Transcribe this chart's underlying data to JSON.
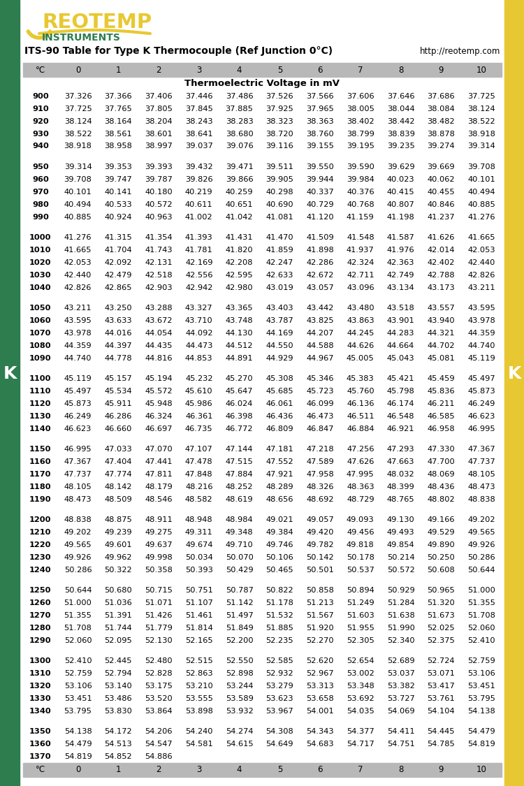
{
  "title_line1": "ITS-90 Table for Type K Thermocouple (Ref Junction 0°C)",
  "title_url": "http://reotemp.com",
  "subtitle": "Thermoelectric Voltage in mV",
  "col_headers": [
    "°C",
    "0",
    "1",
    "2",
    "3",
    "4",
    "5",
    "6",
    "7",
    "8",
    "9",
    "10"
  ],
  "background": "#ffffff",
  "header_bg": "#b8b8b8",
  "side_green": "#2e7d4f",
  "side_yellow": "#e8c832",
  "reotemp_yellow": "#e8c832",
  "reotemp_green": "#2e7d4f",
  "table_data": [
    [
      900,
      37.326,
      37.366,
      37.406,
      37.446,
      37.486,
      37.526,
      37.566,
      37.606,
      37.646,
      37.686,
      37.725
    ],
    [
      910,
      37.725,
      37.765,
      37.805,
      37.845,
      37.885,
      37.925,
      37.965,
      38.005,
      38.044,
      38.084,
      38.124
    ],
    [
      920,
      38.124,
      38.164,
      38.204,
      38.243,
      38.283,
      38.323,
      38.363,
      38.402,
      38.442,
      38.482,
      38.522
    ],
    [
      930,
      38.522,
      38.561,
      38.601,
      38.641,
      38.68,
      38.72,
      38.76,
      38.799,
      38.839,
      38.878,
      38.918
    ],
    [
      940,
      38.918,
      38.958,
      38.997,
      39.037,
      39.076,
      39.116,
      39.155,
      39.195,
      39.235,
      39.274,
      39.314
    ],
    [
      950,
      39.314,
      39.353,
      39.393,
      39.432,
      39.471,
      39.511,
      39.55,
      39.59,
      39.629,
      39.669,
      39.708
    ],
    [
      960,
      39.708,
      39.747,
      39.787,
      39.826,
      39.866,
      39.905,
      39.944,
      39.984,
      40.023,
      40.062,
      40.101
    ],
    [
      970,
      40.101,
      40.141,
      40.18,
      40.219,
      40.259,
      40.298,
      40.337,
      40.376,
      40.415,
      40.455,
      40.494
    ],
    [
      980,
      40.494,
      40.533,
      40.572,
      40.611,
      40.651,
      40.69,
      40.729,
      40.768,
      40.807,
      40.846,
      40.885
    ],
    [
      990,
      40.885,
      40.924,
      40.963,
      41.002,
      41.042,
      41.081,
      41.12,
      41.159,
      41.198,
      41.237,
      41.276
    ],
    [
      1000,
      41.276,
      41.315,
      41.354,
      41.393,
      41.431,
      41.47,
      41.509,
      41.548,
      41.587,
      41.626,
      41.665
    ],
    [
      1010,
      41.665,
      41.704,
      41.743,
      41.781,
      41.82,
      41.859,
      41.898,
      41.937,
      41.976,
      42.014,
      42.053
    ],
    [
      1020,
      42.053,
      42.092,
      42.131,
      42.169,
      42.208,
      42.247,
      42.286,
      42.324,
      42.363,
      42.402,
      42.44
    ],
    [
      1030,
      42.44,
      42.479,
      42.518,
      42.556,
      42.595,
      42.633,
      42.672,
      42.711,
      42.749,
      42.788,
      42.826
    ],
    [
      1040,
      42.826,
      42.865,
      42.903,
      42.942,
      42.98,
      43.019,
      43.057,
      43.096,
      43.134,
      43.173,
      43.211
    ],
    [
      1050,
      43.211,
      43.25,
      43.288,
      43.327,
      43.365,
      43.403,
      43.442,
      43.48,
      43.518,
      43.557,
      43.595
    ],
    [
      1060,
      43.595,
      43.633,
      43.672,
      43.71,
      43.748,
      43.787,
      43.825,
      43.863,
      43.901,
      43.94,
      43.978
    ],
    [
      1070,
      43.978,
      44.016,
      44.054,
      44.092,
      44.13,
      44.169,
      44.207,
      44.245,
      44.283,
      44.321,
      44.359
    ],
    [
      1080,
      44.359,
      44.397,
      44.435,
      44.473,
      44.512,
      44.55,
      44.588,
      44.626,
      44.664,
      44.702,
      44.74
    ],
    [
      1090,
      44.74,
      44.778,
      44.816,
      44.853,
      44.891,
      44.929,
      44.967,
      45.005,
      45.043,
      45.081,
      45.119
    ],
    [
      1100,
      45.119,
      45.157,
      45.194,
      45.232,
      45.27,
      45.308,
      45.346,
      45.383,
      45.421,
      45.459,
      45.497
    ],
    [
      1110,
      45.497,
      45.534,
      45.572,
      45.61,
      45.647,
      45.685,
      45.723,
      45.76,
      45.798,
      45.836,
      45.873
    ],
    [
      1120,
      45.873,
      45.911,
      45.948,
      45.986,
      46.024,
      46.061,
      46.099,
      46.136,
      46.174,
      46.211,
      46.249
    ],
    [
      1130,
      46.249,
      46.286,
      46.324,
      46.361,
      46.398,
      46.436,
      46.473,
      46.511,
      46.548,
      46.585,
      46.623
    ],
    [
      1140,
      46.623,
      46.66,
      46.697,
      46.735,
      46.772,
      46.809,
      46.847,
      46.884,
      46.921,
      46.958,
      46.995
    ],
    [
      1150,
      46.995,
      47.033,
      47.07,
      47.107,
      47.144,
      47.181,
      47.218,
      47.256,
      47.293,
      47.33,
      47.367
    ],
    [
      1160,
      47.367,
      47.404,
      47.441,
      47.478,
      47.515,
      47.552,
      47.589,
      47.626,
      47.663,
      47.7,
      47.737
    ],
    [
      1170,
      47.737,
      47.774,
      47.811,
      47.848,
      47.884,
      47.921,
      47.958,
      47.995,
      48.032,
      48.069,
      48.105
    ],
    [
      1180,
      48.105,
      48.142,
      48.179,
      48.216,
      48.252,
      48.289,
      48.326,
      48.363,
      48.399,
      48.436,
      48.473
    ],
    [
      1190,
      48.473,
      48.509,
      48.546,
      48.582,
      48.619,
      48.656,
      48.692,
      48.729,
      48.765,
      48.802,
      48.838
    ],
    [
      1200,
      48.838,
      48.875,
      48.911,
      48.948,
      48.984,
      49.021,
      49.057,
      49.093,
      49.13,
      49.166,
      49.202
    ],
    [
      1210,
      49.202,
      49.239,
      49.275,
      49.311,
      49.348,
      49.384,
      49.42,
      49.456,
      49.493,
      49.529,
      49.565
    ],
    [
      1220,
      49.565,
      49.601,
      49.637,
      49.674,
      49.71,
      49.746,
      49.782,
      49.818,
      49.854,
      49.89,
      49.926
    ],
    [
      1230,
      49.926,
      49.962,
      49.998,
      50.034,
      50.07,
      50.106,
      50.142,
      50.178,
      50.214,
      50.25,
      50.286
    ],
    [
      1240,
      50.286,
      50.322,
      50.358,
      50.393,
      50.429,
      50.465,
      50.501,
      50.537,
      50.572,
      50.608,
      50.644
    ],
    [
      1250,
      50.644,
      50.68,
      50.715,
      50.751,
      50.787,
      50.822,
      50.858,
      50.894,
      50.929,
      50.965,
      51.0
    ],
    [
      1260,
      51.0,
      51.036,
      51.071,
      51.107,
      51.142,
      51.178,
      51.213,
      51.249,
      51.284,
      51.32,
      51.355
    ],
    [
      1270,
      51.355,
      51.391,
      51.426,
      51.461,
      51.497,
      51.532,
      51.567,
      51.603,
      51.638,
      51.673,
      51.708
    ],
    [
      1280,
      51.708,
      51.744,
      51.779,
      51.814,
      51.849,
      51.885,
      51.92,
      51.955,
      51.99,
      52.025,
      52.06
    ],
    [
      1290,
      52.06,
      52.095,
      52.13,
      52.165,
      52.2,
      52.235,
      52.27,
      52.305,
      52.34,
      52.375,
      52.41
    ],
    [
      1300,
      52.41,
      52.445,
      52.48,
      52.515,
      52.55,
      52.585,
      52.62,
      52.654,
      52.689,
      52.724,
      52.759
    ],
    [
      1310,
      52.759,
      52.794,
      52.828,
      52.863,
      52.898,
      52.932,
      52.967,
      53.002,
      53.037,
      53.071,
      53.106
    ],
    [
      1320,
      53.106,
      53.14,
      53.175,
      53.21,
      53.244,
      53.279,
      53.313,
      53.348,
      53.382,
      53.417,
      53.451
    ],
    [
      1330,
      53.451,
      53.486,
      53.52,
      53.555,
      53.589,
      53.623,
      53.658,
      53.692,
      53.727,
      53.761,
      53.795
    ],
    [
      1340,
      53.795,
      53.83,
      53.864,
      53.898,
      53.932,
      53.967,
      54.001,
      54.035,
      54.069,
      54.104,
      54.138
    ],
    [
      1350,
      54.138,
      54.172,
      54.206,
      54.24,
      54.274,
      54.308,
      54.343,
      54.377,
      54.411,
      54.445,
      54.479
    ],
    [
      1360,
      54.479,
      54.513,
      54.547,
      54.581,
      54.615,
      54.649,
      54.683,
      54.717,
      54.751,
      54.785,
      54.819
    ],
    [
      1370,
      54.819,
      54.852,
      54.886,
      null,
      null,
      null,
      null,
      null,
      null,
      null,
      null
    ]
  ]
}
